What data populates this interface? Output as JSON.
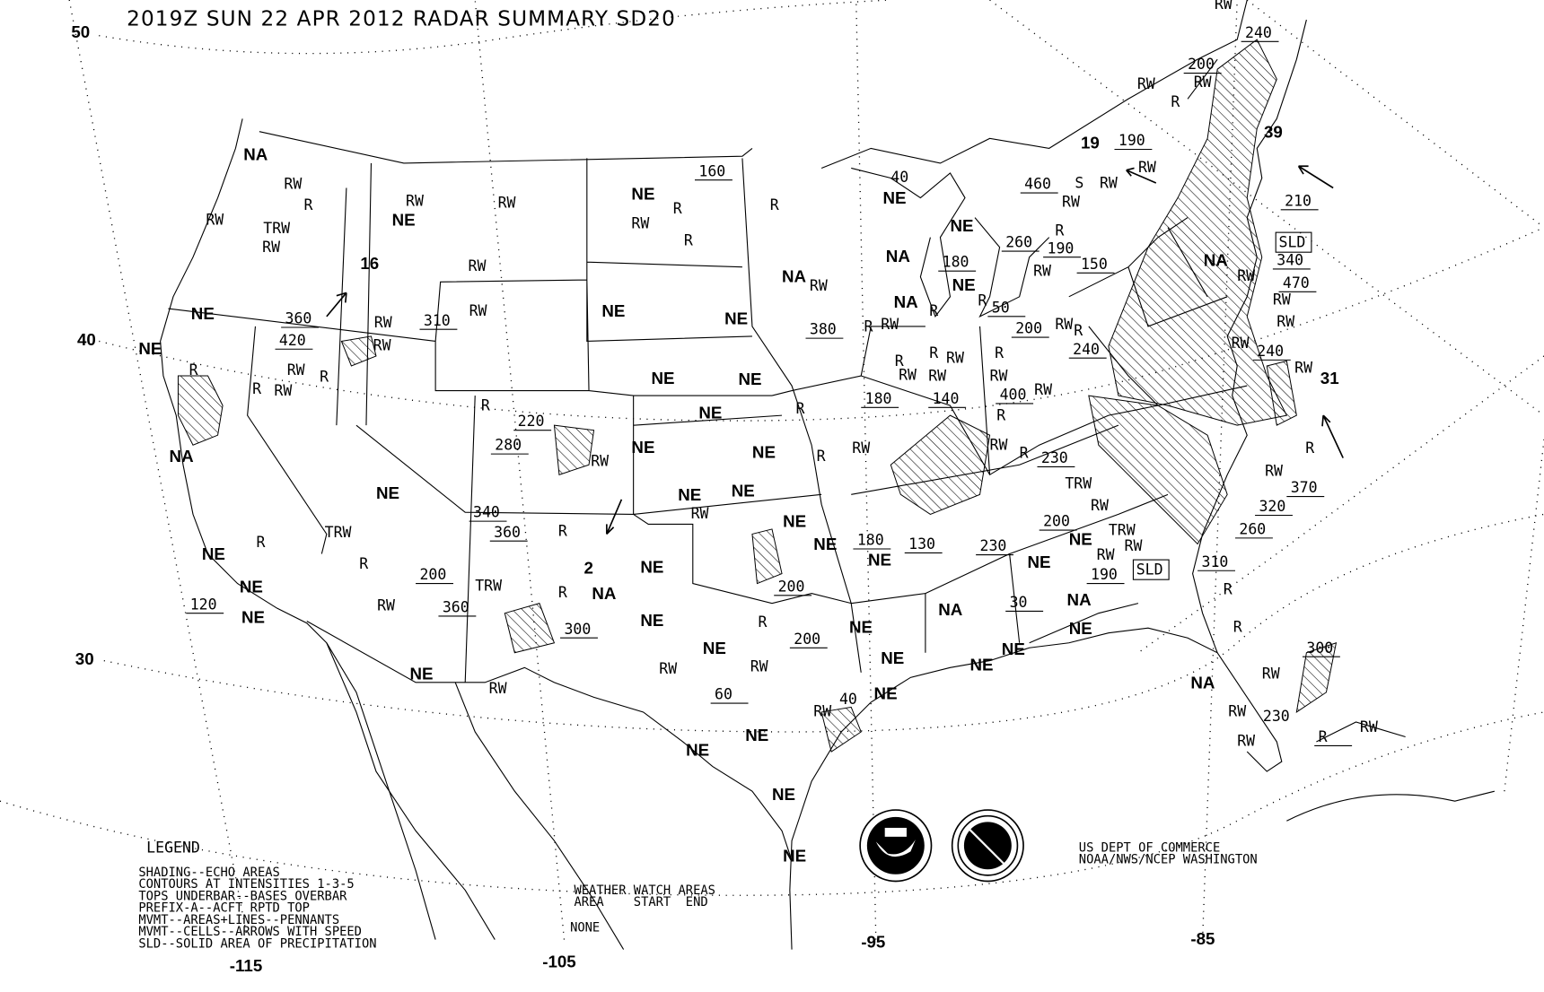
{
  "title": "2019Z SUN 22 APR 2012 RADAR SUMMARY SD20",
  "latitude_labels": [
    "50",
    "40",
    "30"
  ],
  "longitude_labels": [
    "-115",
    "-105",
    "-95",
    "-85"
  ],
  "legend": {
    "heading": "LEGEND",
    "lines": [
      "SHADING--ECHO AREAS",
      "CONTOURS AT INTENSITIES 1-3-5",
      "TOPS UNDERBAR--BASES OVERBAR",
      "PREFIX-A--ACFT RPTD TOP",
      "MVMT--AREAS+LINES--PENNANTS",
      "MVMT--CELLS--ARROWS WITH SPEED",
      "SLD--SOLID AREA OF PRECIPITATION"
    ]
  },
  "watch_areas": {
    "heading": "WEATHER WATCH AREAS",
    "columns": "AREA    START  END",
    "value": "NONE"
  },
  "credits": [
    "US DEPT OF COMMERCE",
    "NOAA/NWS/NCEP WASHINGTON"
  ],
  "logos": [
    "noaa-logo",
    "national-weather-service-logo"
  ],
  "map_labels": [
    "NA",
    "RW",
    "R",
    "RW",
    "TRW",
    "RW",
    "16",
    "NE",
    "RW",
    "RW",
    "NE",
    "RW",
    "R",
    "R",
    "160",
    "RW",
    "NE",
    "NE",
    "360",
    "420",
    "RW",
    "310",
    "RW",
    "RW",
    "RW",
    "R",
    "R",
    "RW",
    "R",
    "NA",
    "NE",
    "NE",
    "NE",
    "NE",
    "NE",
    "NE",
    "NE",
    "NE",
    "NE",
    "NE",
    "NE",
    "NE",
    "NE",
    "NE",
    "NE",
    "NE",
    "NE",
    "NA",
    "NE",
    "NE",
    "NE",
    "NE",
    "NE",
    "NE",
    "NE",
    "NE",
    "NE",
    "NE",
    "NE",
    "NE",
    "NE",
    "NE",
    "NE",
    "NA",
    "NA",
    "NA",
    "R",
    "220",
    "280",
    "RW",
    "340",
    "RW",
    "360",
    "R",
    "R",
    "200",
    "RW",
    "360",
    "TRW",
    "R",
    "300",
    "2",
    "RW",
    "RW",
    "60",
    "RW",
    "200",
    "200",
    "R",
    "RW",
    "40",
    "120",
    "TRW",
    "R",
    "R",
    "NA",
    "RW",
    "NA",
    "NE",
    "40",
    "NE",
    "NE",
    "180",
    "NA",
    "RW",
    "R",
    "380",
    "R",
    "RW",
    "R",
    "RW",
    "R",
    "RW",
    "180",
    "140",
    "R",
    "400",
    "RW",
    "RW",
    "200",
    "RW",
    "240",
    "R",
    "50",
    "R",
    "260",
    "190",
    "150",
    "R",
    "RW",
    "460",
    "S",
    "RW",
    "RW",
    "190",
    "RW",
    "19",
    "RW",
    "200",
    "RW",
    "R",
    "RW",
    "240",
    "39",
    "210",
    "SLD",
    "340",
    "RW",
    "470",
    "RW",
    "RW",
    "RW",
    "240",
    "RW",
    "31",
    "NA",
    "RW",
    "R",
    "RW",
    "R",
    "R",
    "230",
    "TRW",
    "R",
    "200",
    "RW",
    "TRW",
    "RW",
    "RW",
    "230",
    "180",
    "130",
    "30",
    "190",
    "SLD",
    "310",
    "260",
    "320",
    "370",
    "RW",
    "R",
    "R",
    "R",
    "RW",
    "RW",
    "230",
    "300",
    "R",
    "RW",
    "RW"
  ],
  "colors": {
    "ink": "#000000",
    "background": "#ffffff"
  }
}
